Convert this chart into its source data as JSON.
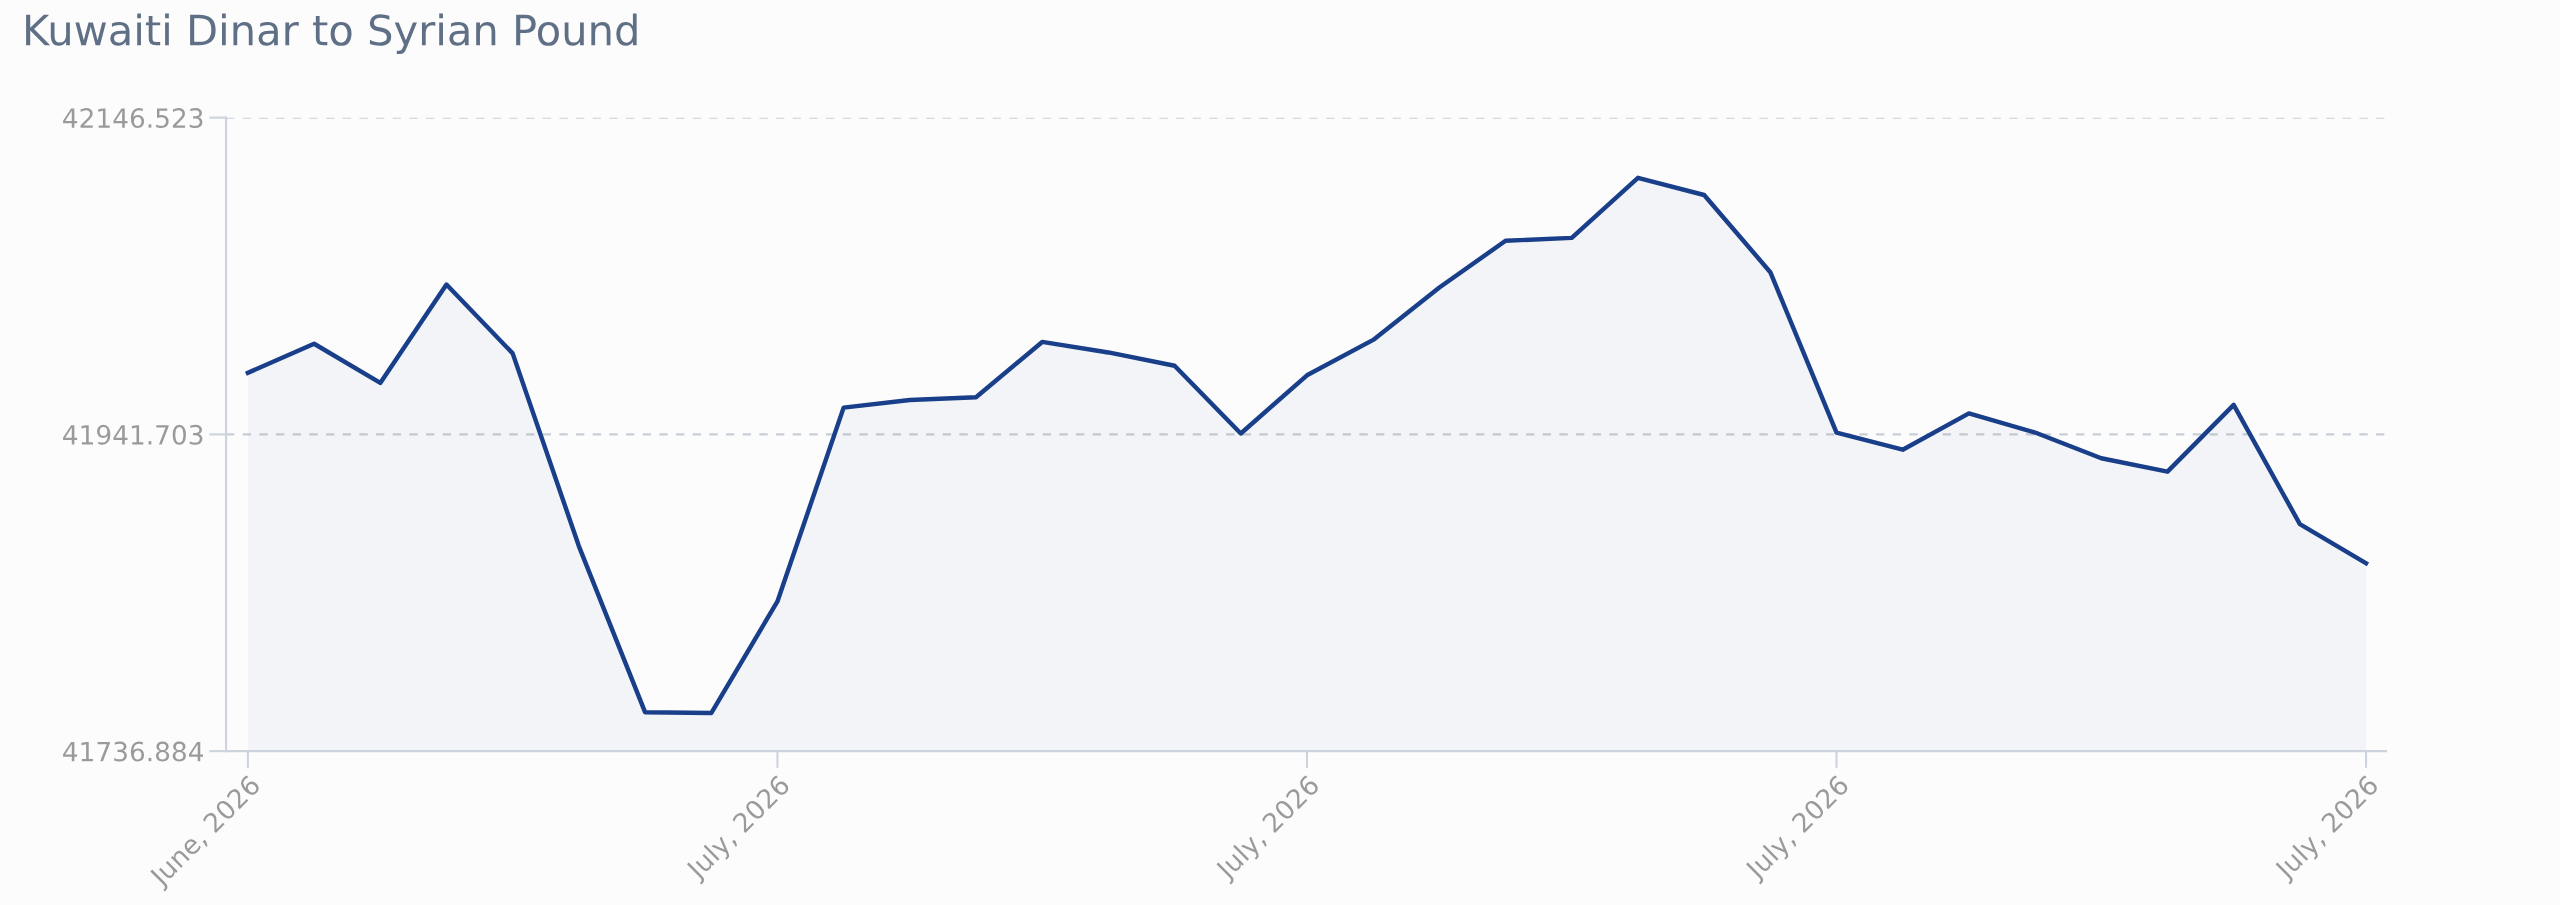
{
  "chart_data": {
    "type": "area",
    "title": "Kuwaiti Dinar to Syrian Pound",
    "categories": [
      "June, 2026",
      null,
      null,
      null,
      null,
      null,
      null,
      null,
      "July, 2026",
      null,
      null,
      null,
      null,
      null,
      null,
      null,
      "July, 2026",
      null,
      null,
      null,
      null,
      null,
      null,
      null,
      "July, 2026",
      null,
      null,
      null,
      null,
      null,
      null,
      null,
      "July, 2026"
    ],
    "series": [
      {
        "color": "#1a3f8a",
        "values": [
          41981.5,
          42000.3,
          41975.0,
          42038.6,
          41994.1,
          41869.5,
          41762.1,
          41761.5,
          41833.7,
          41959.0,
          41963.9,
          41965.7,
          42001.5,
          41994.7,
          41986.1,
          41942.3,
          41979.9,
          42002.8,
          42036.7,
          42066.9,
          42068.8,
          42107.6,
          42096.5,
          42046.6,
          41942.9,
          41931.8,
          41955.3,
          41942.9,
          41926.3,
          41917.6,
          41960.8,
          41883.7,
          41858.4
        ]
      }
    ],
    "ylim": [
      41736.884,
      42146.523
    ],
    "yticks": [
      {
        "value": 41736.884,
        "label": "41736.884"
      },
      {
        "value": 41941.703,
        "label": "41941.703"
      },
      {
        "value": 42146.523,
        "label": "42146.523"
      }
    ],
    "grid": "y",
    "legend": false,
    "marker": "none",
    "line_style": "solid"
  }
}
